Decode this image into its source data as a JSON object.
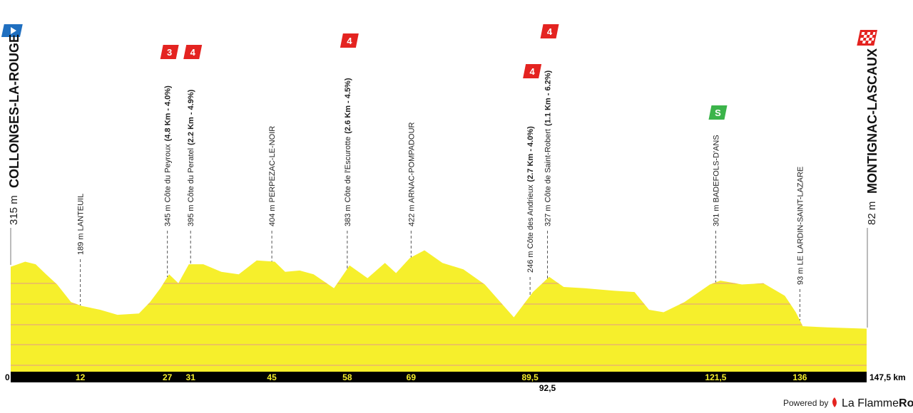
{
  "chart_data": {
    "type": "area",
    "start": {
      "elevation_label": "315 m",
      "name": "COLLONGES-LA-ROUGE"
    },
    "finish": {
      "elevation_label": "82 m",
      "name": "MONTIGNAC-LASCAUX"
    },
    "x": [
      0,
      2.5,
      4.3,
      6.1,
      8.0,
      10.4,
      12.3,
      15.4,
      18.4,
      22.1,
      24.0,
      25.8,
      27.3,
      28.9,
      30.7,
      33.2,
      36.3,
      39.3,
      42.4,
      45.5,
      47.3,
      49.8,
      52.2,
      55.7,
      58.4,
      61.5,
      64.5,
      66.4,
      68.8,
      71.3,
      74.4,
      78.0,
      81.7,
      86.7,
      90.0,
      92.8,
      95.3,
      98.9,
      103.9,
      107.5,
      110.0,
      112.5,
      116.1,
      120.5,
      122.3,
      126.0,
      129.7,
      133.4,
      135.3,
      136.5,
      140.7,
      147.5
    ],
    "values": [
      315,
      335,
      325,
      285,
      245,
      175,
      160,
      145,
      125,
      130,
      175,
      230,
      285,
      250,
      325,
      325,
      295,
      285,
      340,
      335,
      295,
      300,
      285,
      230,
      320,
      270,
      330,
      290,
      350,
      380,
      330,
      305,
      245,
      115,
      215,
      275,
      235,
      230,
      220,
      215,
      145,
      135,
      175,
      245,
      260,
      245,
      250,
      200,
      135,
      80,
      75,
      70
    ],
    "color": "#f6ef2c",
    "xlim": [
      0,
      147.5
    ],
    "ylim": [
      -100,
      480
    ],
    "xticks": [
      0,
      12,
      27,
      31,
      45,
      58,
      69,
      {
        "value": 89.5,
        "label": "89,5"
      },
      {
        "value": 92.5,
        "label": "92,5"
      },
      {
        "value": 121.5,
        "label": "121,5"
      },
      136,
      {
        "value": 147.5,
        "label": "147,5 km"
      }
    ],
    "waypoints": [
      {
        "km": 12,
        "label": "189 m LANTEUIL"
      },
      {
        "km": 27,
        "label": "345 m Côte du Peyroux",
        "climb": "(4.8 Km - 4.0%)",
        "badge": "3",
        "badge_color": "#e42320"
      },
      {
        "km": 31,
        "label": "395 m Côte du Peratel",
        "climb": "(2.2 Km - 4.9%)",
        "badge": "4",
        "badge_color": "#e42320"
      },
      {
        "km": 45,
        "label": "404 m PERPEZAC-LE-NOIR"
      },
      {
        "km": 58,
        "label": "383 m Côte de l'Escurotte",
        "climb": "(2.6 Km - 4.5%)",
        "badge": "4",
        "badge_color": "#e42320"
      },
      {
        "km": 69,
        "label": "422 m ARNAC-POMPADOUR"
      },
      {
        "km": 89.5,
        "label": "246 m Côte des Andrieux",
        "climb": "(2.7 Km - 4.0%)",
        "badge": "4",
        "badge_color": "#e42320"
      },
      {
        "km": 92.5,
        "label": "327 m Côte de Saint-Robert",
        "climb": "(1.1 Km - 6.2%)",
        "badge": "4",
        "badge_color": "#e42320"
      },
      {
        "km": 121.5,
        "label": "301 m BADEFOLS-D'ANS",
        "badge": "S",
        "badge_color": "#3bb44a"
      },
      {
        "km": 136,
        "label": "93 m LE LARDIN-SAINT-LAZARE"
      }
    ]
  },
  "footer": {
    "powered": "Powered by",
    "brand_a": "La Flamme",
    "brand_b": "Rouge"
  }
}
